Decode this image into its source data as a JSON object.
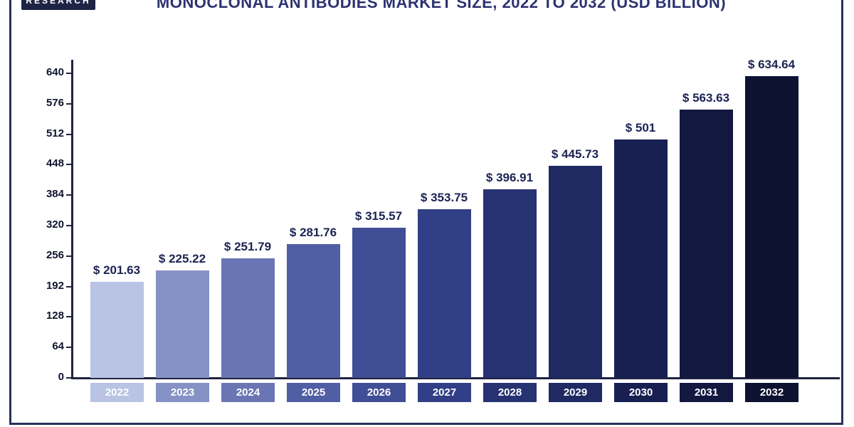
{
  "header": {
    "logo_text": "RESEARCH"
  },
  "chart_data": {
    "type": "bar",
    "title": "MONOCLONAL ANTIBODIES MARKET SIZE, 2022 TO 2032 (USD BILLION)",
    "categories": [
      "2022",
      "2023",
      "2024",
      "2025",
      "2026",
      "2027",
      "2028",
      "2029",
      "2030",
      "2031",
      "2032"
    ],
    "values": [
      201.63,
      225.22,
      251.79,
      281.76,
      315.57,
      353.75,
      396.91,
      445.73,
      501,
      563.63,
      634.64
    ],
    "value_labels": [
      "$ 201.63",
      "$ 225.22",
      "$ 251.79",
      "$ 281.76",
      "$ 315.57",
      "$ 353.75",
      "$ 396.91",
      "$ 445.73",
      "$ 501",
      "$ 563.63",
      "$ 634.64"
    ],
    "xlabel": "",
    "ylabel": "",
    "ylim": [
      0,
      640
    ],
    "yticks": [
      0,
      64,
      128,
      192,
      256,
      320,
      384,
      448,
      512,
      576,
      640
    ],
    "grid": false,
    "legend_position": "none",
    "bar_colors": [
      "#b9c3e4",
      "#8691c5",
      "#6a76b4",
      "#505ea3",
      "#404e95",
      "#313f86",
      "#273272",
      "#1f2a63",
      "#182052",
      "#121840",
      "#0c1230"
    ],
    "axis_color": "#20243f",
    "value_label_color": "#1c2353",
    "title_color": "#2b3270"
  }
}
